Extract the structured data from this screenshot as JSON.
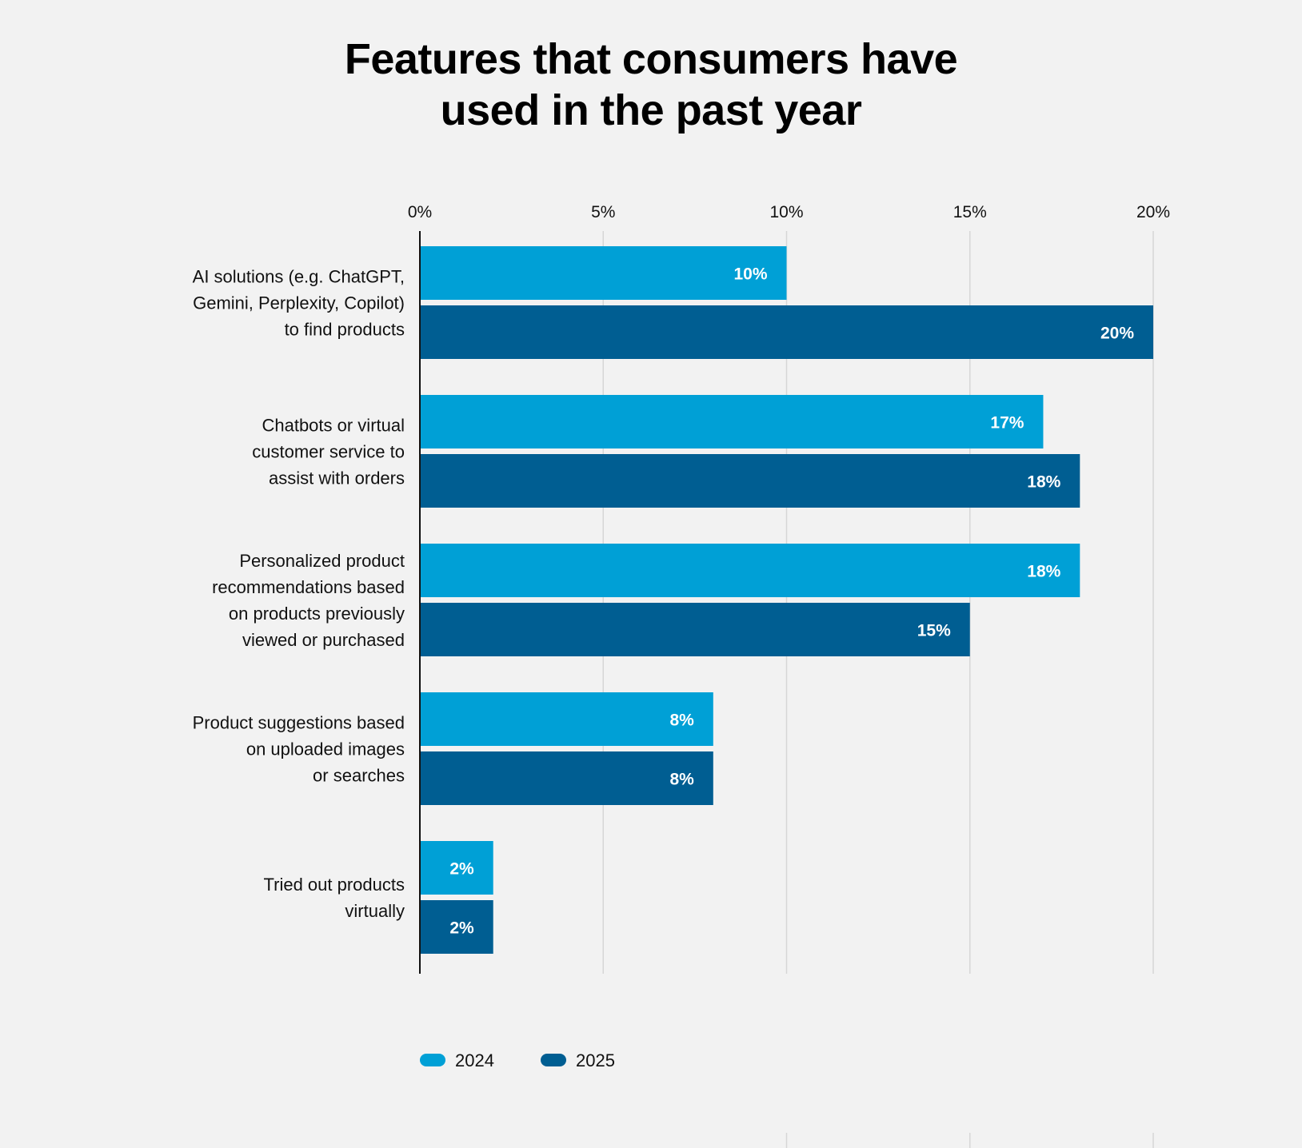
{
  "chart_data": {
    "type": "bar",
    "orientation": "horizontal",
    "title": "Features that consumers have used in the past year",
    "title_lines": [
      "Features that consumers have",
      "used in the past year"
    ],
    "categories": [
      "AI solutions (e.g. ChatGPT, Gemini, Perplexity, Copilot) to find products",
      "Chatbots or virtual customer service to assist with orders",
      "Personalized product recommendations based on products previously viewed or purchased",
      "Product suggestions based on uploaded images or searches",
      "Tried out products virtually"
    ],
    "category_lines": [
      [
        "AI solutions (e.g. ChatGPT,",
        "Gemini, Perplexity, Copilot)",
        "to find products"
      ],
      [
        "Chatbots or virtual",
        "customer service to",
        "assist with orders"
      ],
      [
        "Personalized product",
        "recommendations based",
        "on products previously",
        "viewed or purchased"
      ],
      [
        "Product suggestions based",
        "on uploaded images",
        "or searches"
      ],
      [
        "Tried out products",
        "virtually"
      ]
    ],
    "series": [
      {
        "name": "2024",
        "color": "#00a0d6",
        "values": [
          10,
          17,
          18,
          8,
          2
        ]
      },
      {
        "name": "2025",
        "color": "#005e92",
        "values": [
          20,
          18,
          15,
          8,
          2
        ]
      }
    ],
    "xlim": [
      0,
      20
    ],
    "x_ticks": [
      0,
      5,
      10,
      15,
      20
    ],
    "x_tick_labels": [
      "0%",
      "5%",
      "10%",
      "15%",
      "20%"
    ],
    "x_axis_position": "top",
    "data_label_suffix": "%",
    "grid": true,
    "legend_position": "bottom-left"
  }
}
